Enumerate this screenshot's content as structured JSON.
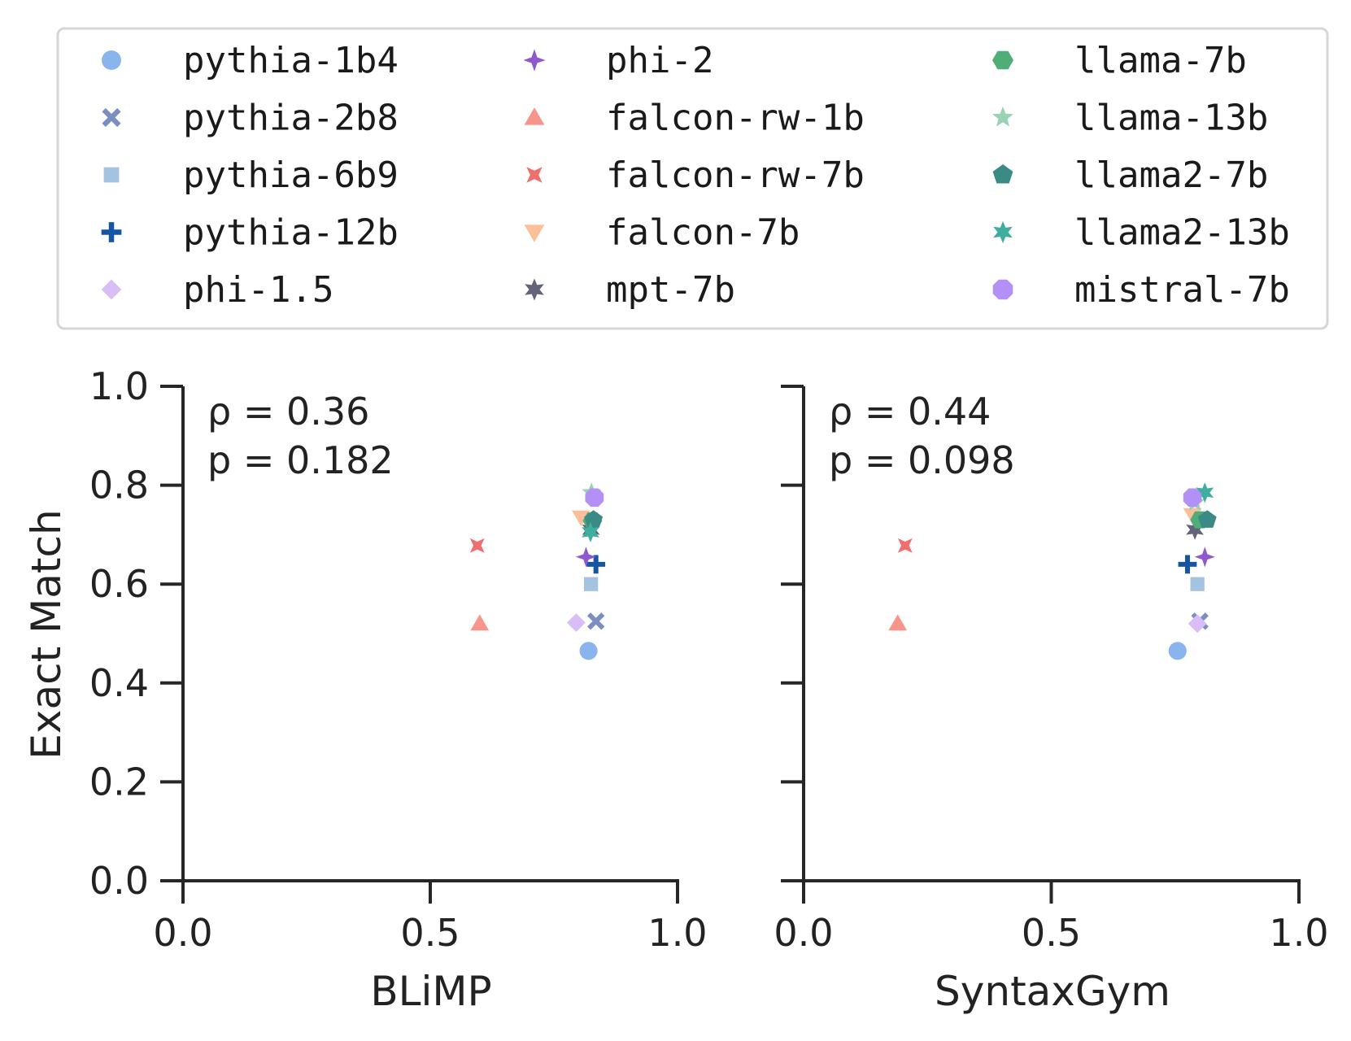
{
  "chart_data": {
    "type": "scatter",
    "ylabel": "Exact Match",
    "legend_position": "top (above plots, 3 columns)",
    "series": [
      {
        "name": "pythia-1b4",
        "color": "#89b4ee",
        "marker": "circle"
      },
      {
        "name": "pythia-2b8",
        "color": "#7a8fbd",
        "marker": "x"
      },
      {
        "name": "pythia-6b9",
        "color": "#a4c3e0",
        "marker": "square"
      },
      {
        "name": "pythia-12b",
        "color": "#1556a4",
        "marker": "plus"
      },
      {
        "name": "phi-1.5",
        "color": "#d9bdf7",
        "marker": "diamond"
      },
      {
        "name": "phi-2",
        "color": "#8e59cf",
        "marker": "star4"
      },
      {
        "name": "falcon-rw-1b",
        "color": "#f7958c",
        "marker": "triangle-up"
      },
      {
        "name": "falcon-rw-7b",
        "color": "#ef6f6e",
        "marker": "star4x"
      },
      {
        "name": "falcon-7b",
        "color": "#fbbf99",
        "marker": "triangle-down"
      },
      {
        "name": "mpt-7b",
        "color": "#62657a",
        "marker": "star6"
      },
      {
        "name": "llama-7b",
        "color": "#4fae78",
        "marker": "hexagon"
      },
      {
        "name": "llama-13b",
        "color": "#9ad3b4",
        "marker": "star5"
      },
      {
        "name": "llama2-7b",
        "color": "#3b8a86",
        "marker": "pentagon"
      },
      {
        "name": "llama2-13b",
        "color": "#3fae9f",
        "marker": "star6"
      },
      {
        "name": "mistral-7b",
        "color": "#b290f6",
        "marker": "octagon"
      }
    ],
    "panels": [
      {
        "xlabel": "BLiMP",
        "xlim": [
          0.0,
          1.0
        ],
        "ylim": [
          0.0,
          1.0
        ],
        "xticks": [
          "0.0",
          "0.5",
          "1.0"
        ],
        "yticks": [
          "0.0",
          "0.2",
          "0.4",
          "0.6",
          "0.8",
          "1.0"
        ],
        "rho_line": "ρ = 0.36",
        "p_line": "p = 0.182",
        "points": [
          {
            "model": "pythia-1b4",
            "x": 0.82,
            "y": 0.465
          },
          {
            "model": "pythia-2b8",
            "x": 0.835,
            "y": 0.525
          },
          {
            "model": "pythia-6b9",
            "x": 0.825,
            "y": 0.6
          },
          {
            "model": "pythia-12b",
            "x": 0.835,
            "y": 0.64
          },
          {
            "model": "phi-1.5",
            "x": 0.795,
            "y": 0.522
          },
          {
            "model": "phi-2",
            "x": 0.815,
            "y": 0.655
          },
          {
            "model": "falcon-rw-1b",
            "x": 0.6,
            "y": 0.52
          },
          {
            "model": "falcon-rw-7b",
            "x": 0.595,
            "y": 0.678
          },
          {
            "model": "falcon-7b",
            "x": 0.805,
            "y": 0.735
          },
          {
            "model": "mpt-7b",
            "x": 0.825,
            "y": 0.71
          },
          {
            "model": "llama-7b",
            "x": 0.828,
            "y": 0.728
          },
          {
            "model": "llama-13b",
            "x": 0.826,
            "y": 0.785
          },
          {
            "model": "llama2-7b",
            "x": 0.83,
            "y": 0.73
          },
          {
            "model": "llama2-13b",
            "x": 0.824,
            "y": 0.705
          },
          {
            "model": "mistral-7b",
            "x": 0.832,
            "y": 0.775
          }
        ]
      },
      {
        "xlabel": "SyntaxGym",
        "xlim": [
          0.0,
          1.0
        ],
        "ylim": [
          0.0,
          1.0
        ],
        "xticks": [
          "0.0",
          "0.5",
          "1.0"
        ],
        "yticks": [
          "0.0",
          "0.2",
          "0.4",
          "0.6",
          "0.8",
          "1.0"
        ],
        "rho_line": "ρ = 0.44",
        "p_line": "p = 0.098",
        "points": [
          {
            "model": "pythia-1b4",
            "x": 0.755,
            "y": 0.465
          },
          {
            "model": "pythia-2b8",
            "x": 0.8,
            "y": 0.525
          },
          {
            "model": "pythia-6b9",
            "x": 0.795,
            "y": 0.6
          },
          {
            "model": "pythia-12b",
            "x": 0.775,
            "y": 0.64
          },
          {
            "model": "phi-1.5",
            "x": 0.795,
            "y": 0.52
          },
          {
            "model": "phi-2",
            "x": 0.81,
            "y": 0.655
          },
          {
            "model": "falcon-rw-1b",
            "x": 0.19,
            "y": 0.52
          },
          {
            "model": "falcon-rw-7b",
            "x": 0.205,
            "y": 0.678
          },
          {
            "model": "falcon-7b",
            "x": 0.785,
            "y": 0.74
          },
          {
            "model": "mpt-7b",
            "x": 0.79,
            "y": 0.71
          },
          {
            "model": "llama-7b",
            "x": 0.8,
            "y": 0.73
          },
          {
            "model": "llama-13b",
            "x": 0.79,
            "y": 0.765
          },
          {
            "model": "llama2-7b",
            "x": 0.815,
            "y": 0.73
          },
          {
            "model": "llama2-13b",
            "x": 0.81,
            "y": 0.785
          },
          {
            "model": "mistral-7b",
            "x": 0.785,
            "y": 0.775
          }
        ]
      }
    ]
  }
}
